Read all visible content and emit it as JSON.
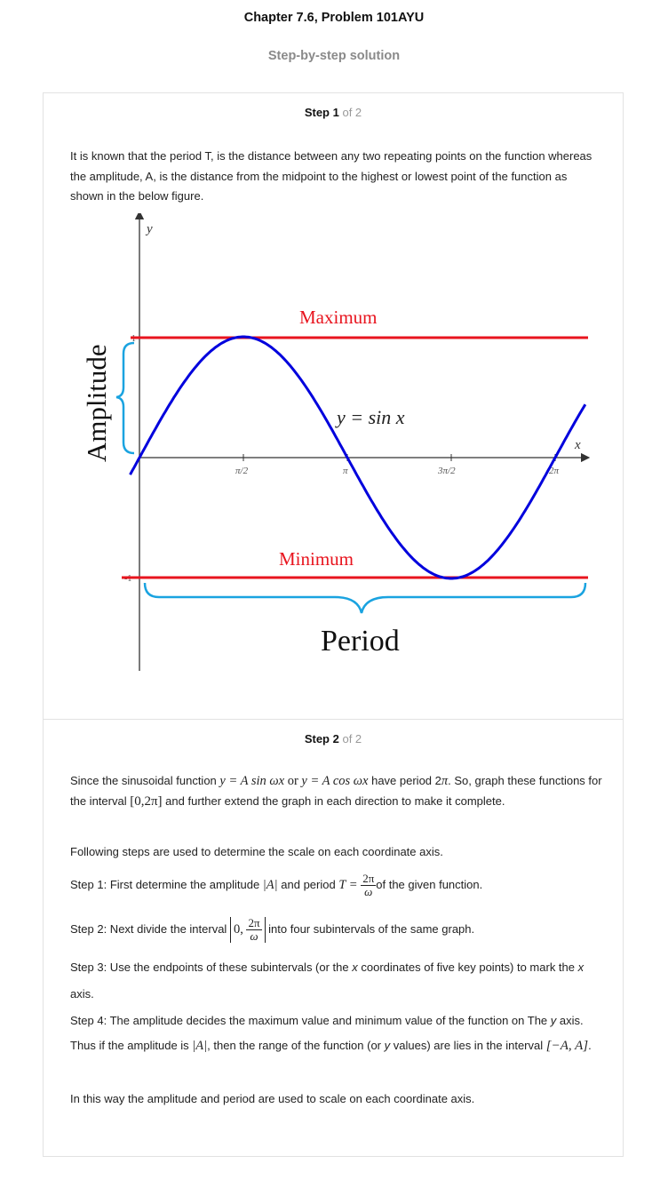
{
  "header": {
    "title": "Chapter 7.6, Problem 101AYU",
    "subtitle": "Step-by-step solution"
  },
  "step1": {
    "label": "Step 1",
    "of": "of 2",
    "text": "It is known that the period T, is the distance between any two repeating points on the function whereas the amplitude, A, is the distance from the midpoint to the highest or lowest point of the function as shown in the below figure."
  },
  "figure": {
    "y_axis_label": "y",
    "x_axis_label": "x",
    "ytick_top": "1",
    "ytick_bottom": "-1",
    "xticks": [
      "π/2",
      "π",
      "3π/2",
      "2π"
    ],
    "maximum_label": "Maximum",
    "minimum_label": "Minimum",
    "curve_label": "y = sin x",
    "amplitude_label": "Amplitude",
    "period_label": "Period",
    "colors": {
      "curve": "#0000dd",
      "lines": "#e8141e",
      "braces": "#1aa3e0"
    }
  },
  "step2": {
    "label": "Step 2",
    "of": "of 2",
    "p1_a": "Since the sinusoidal function",
    "p1_eq1": "y = A sin ωx",
    "p1_or": "or",
    "p1_eq2": "y = A cos ωx",
    "p1_b": "have period 2",
    "p1_pi": "π",
    "p1_c": ". So, graph these functions for the interval",
    "p1_interval": "[0,2π]",
    "p1_d": "and further extend the graph in each direction to make it complete.",
    "p2": "Following steps are used to determine the scale on each coordinate axis.",
    "s1_label": "Step 1",
    "s1_a": ": First determine the amplitude",
    "s1_absA": "|A|",
    "s1_b": "and period",
    "s1_T": "T =",
    "s1_num": "2π",
    "s1_den": "ω",
    "s1_c": "of the given function.",
    "s2_a": "Step 2: Next divide the interval",
    "s2_zero": "0,",
    "s2_num": "2π",
    "s2_den": "ω",
    "s2_b": "into four subintervals of the same graph.",
    "s3_a": "Step 3: Use the endpoints of these subintervals (or the",
    "s3_x": "x",
    "s3_b": "coordinates of five key points) to mark the",
    "s3_x2": "x",
    "s3_c": "axis.",
    "s4_a": "Step 4: The amplitude decides the maximum value and minimum value of the function on The",
    "s4_y": "y",
    "s4_b": "axis. Thus if the amplitude is",
    "s4_absA": "|A|",
    "s4_c": ", then the range of the function (or",
    "s4_y2": "y",
    "s4_d": "values) are lies in the interval",
    "s4_interval": "[−A, A]",
    "s4_e": ".",
    "p_final": "In this way the amplitude and period are used to scale on each coordinate axis."
  }
}
